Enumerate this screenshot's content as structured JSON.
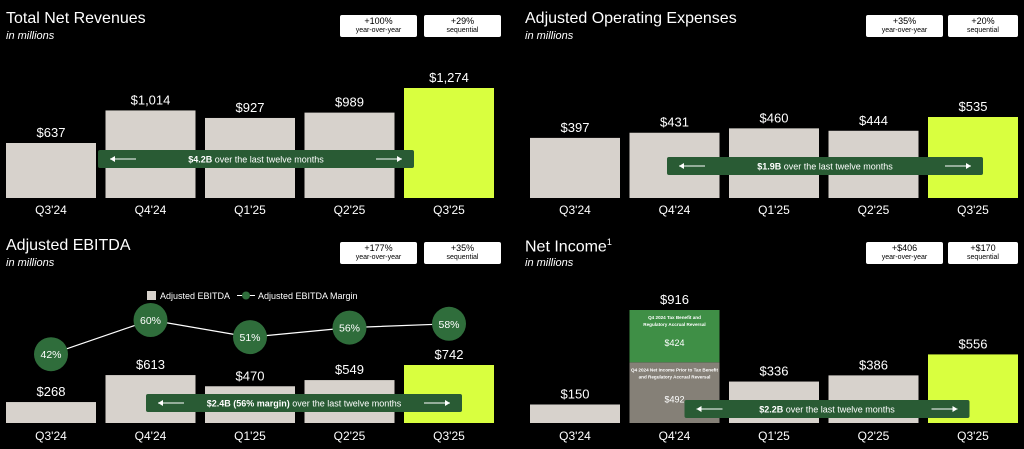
{
  "colors": {
    "bar": "#d7d2cc",
    "highlight": "#d9ff3f",
    "pill": "#295b34",
    "marker": "#2f6d3b",
    "pillStripe": "#2b5a35"
  },
  "panels": [
    {
      "title": "Total Net Revenues",
      "subtitle": "in millions",
      "badges": [
        {
          "value": "+100%",
          "label": "year-over-year"
        },
        {
          "value": "+29%",
          "label": "sequential"
        }
      ],
      "chart_data": {
        "type": "bar",
        "categories": [
          "Q3'24",
          "Q4'24",
          "Q1'25",
          "Q2'25",
          "Q3'25"
        ],
        "values": [
          637,
          1014,
          927,
          989,
          1274
        ],
        "value_labels": [
          "$637",
          "$1,014",
          "$927",
          "$989",
          "$1,274"
        ],
        "highlight_index": 4,
        "ylim": [
          0,
          1274
        ],
        "annotation": {
          "bold": "$4.2B",
          "text": " over the last twelve months"
        }
      }
    },
    {
      "title": "Adjusted Operating Expenses",
      "subtitle": "in millions",
      "badges": [
        {
          "value": "+35%",
          "label": "year-over-year"
        },
        {
          "value": "+20%",
          "label": "sequential"
        }
      ],
      "chart_data": {
        "type": "bar",
        "categories": [
          "Q3'24",
          "Q4'24",
          "Q1'25",
          "Q2'25",
          "Q3'25"
        ],
        "values": [
          397,
          431,
          460,
          444,
          535
        ],
        "value_labels": [
          "$397",
          "$431",
          "$460",
          "$444",
          "$535"
        ],
        "highlight_index": 4,
        "ylim": [
          0,
          535
        ],
        "annotation": {
          "bold": "$1.9B",
          "text": " over the last twelve months"
        }
      }
    },
    {
      "title": "Adjusted EBITDA",
      "subtitle": "in millions",
      "badges": [
        {
          "value": "+177%",
          "label": "year-over-year"
        },
        {
          "value": "+35%",
          "label": "sequential"
        }
      ],
      "chart_data": {
        "type": "bar",
        "categories": [
          "Q3'24",
          "Q4'24",
          "Q1'25",
          "Q2'25",
          "Q3'25"
        ],
        "values": [
          268,
          613,
          470,
          549,
          742
        ],
        "value_labels": [
          "$268",
          "$613",
          "$470",
          "$549",
          "$742"
        ],
        "highlight_index": 4,
        "ylim": [
          0,
          742
        ],
        "legend": [
          "Adjusted EBITDA",
          "Adjusted EBITDA Margin"
        ],
        "line_series": {
          "name": "Adjusted EBITDA Margin",
          "values": [
            42,
            60,
            51,
            56,
            58
          ],
          "labels": [
            "42%",
            "60%",
            "51%",
            "56%",
            "58%"
          ]
        },
        "annotation": {
          "bold": "$2.4B (56% margin)",
          "text": " over the last twelve months"
        }
      }
    },
    {
      "title": "Net Income",
      "title_sup": "1",
      "subtitle": "in millions",
      "badges": [
        {
          "value": "+$406",
          "label": "year-over-year"
        },
        {
          "value": "+$170",
          "label": "sequential"
        }
      ],
      "chart_data": {
        "type": "bar",
        "categories": [
          "Q3'24",
          "Q4'24",
          "Q1'25",
          "Q2'25",
          "Q3'25"
        ],
        "values": [
          150,
          916,
          336,
          386,
          556
        ],
        "value_labels": [
          "$150",
          "$916",
          "$336",
          "$386",
          "$556"
        ],
        "highlight_index": 4,
        "ylim": [
          0,
          916
        ],
        "stack": {
          "index": 1,
          "segments": [
            {
              "value": 492,
              "label": "$492",
              "caption": [
                "Q4 2024 Net Income Prior to Tax Benefit",
                "and Regulatory Accrual Reversal"
              ]
            },
            {
              "value": 424,
              "label": "$424",
              "caption": [
                "Q4 2024 Tax Benefit and",
                "Regulatory Accrual Reversal"
              ]
            }
          ]
        },
        "annotation": {
          "bold": "$2.2B",
          "text": " over the last twelve months"
        }
      }
    }
  ]
}
